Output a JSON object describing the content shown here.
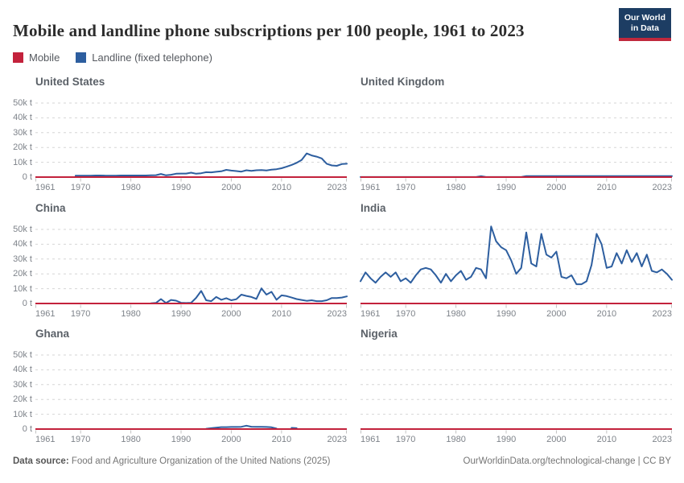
{
  "header": {
    "title": "Mobile and landline phone subscriptions per 100 people, 1961 to 2023",
    "logo": {
      "line1": "Our World",
      "line2": "in Data",
      "bg_color": "#1d3d63",
      "bar_color": "#c0283c"
    }
  },
  "legend": {
    "items": [
      {
        "label": "Mobile",
        "color": "#c3223c"
      },
      {
        "label": "Landline (fixed telephone)",
        "color": "#2d5e9f"
      }
    ]
  },
  "footer": {
    "source_label": "Data source:",
    "source_text": " Food and Agriculture Organization of the United Nations (2025)",
    "credit_text": "OurWorldinData.org/technological-change | CC BY"
  },
  "chart_data": {
    "type": "line",
    "layout": "small multiples, 3 rows x 2 columns, shared axes",
    "x_axis": {
      "min": 1961,
      "max": 2023,
      "ticks": [
        1961,
        1970,
        1980,
        1990,
        2000,
        2010,
        2023
      ]
    },
    "y_axis": {
      "min": 0,
      "max": 50000,
      "unit": "t",
      "grid": "dashed",
      "ticks": [
        {
          "value": 0,
          "label": "0 t"
        },
        {
          "value": 10000,
          "label": "10k t"
        },
        {
          "value": 20000,
          "label": "20k t"
        },
        {
          "value": 30000,
          "label": "30k t"
        },
        {
          "value": 40000,
          "label": "40k t"
        },
        {
          "value": 50000,
          "label": "50k t"
        }
      ],
      "labels_note": "tick labels shown on left column panels only"
    },
    "series_colors": {
      "mobile": "#c3223c",
      "landline": "#2d5e9f"
    },
    "panels": [
      {
        "name": "United States",
        "mobile": {
          "constant_kt": 0
        },
        "landline": {
          "start_year": 1969,
          "values_kt": [
            1.0,
            1.0,
            1.0,
            1.0,
            1.1,
            1.1,
            1.0,
            1.0,
            1.0,
            1.1,
            1.1,
            1.1,
            1.1,
            1.1,
            1.1,
            1.2,
            1.3,
            2.1,
            1.2,
            1.6,
            2.3,
            2.4,
            2.4,
            3.0,
            2.3,
            2.6,
            3.3,
            3.2,
            3.6,
            3.9,
            4.9,
            4.4,
            4.1,
            3.7,
            4.6,
            4.2,
            4.6,
            4.8,
            4.5,
            5.0,
            5.3,
            6.0,
            7.0,
            8.2,
            9.6,
            11.6,
            16.0,
            14.6,
            13.8,
            12.6,
            9.0,
            7.9,
            7.6,
            8.8,
            9.0
          ]
        }
      },
      {
        "name": "United Kingdom",
        "mobile": {
          "constant_kt": 0
        },
        "landline": {
          "start_year": 1961,
          "values_kt": [
            0.05,
            0.05,
            0.05,
            0.05,
            0.05,
            0.05,
            0.05,
            0.05,
            0.05,
            0.05,
            0.05,
            0.05,
            0.05,
            0.05,
            0.05,
            0.05,
            0.05,
            0.05,
            0.05,
            0.05,
            0.05,
            0.05,
            0.05,
            0.05,
            0.6,
            0.05,
            0.05,
            0.05,
            0.05,
            0.05,
            0.05,
            0.05,
            0.05,
            0.7,
            0.7,
            0.7,
            0.7,
            0.7,
            0.7,
            0.7,
            0.7,
            0.7,
            0.7,
            0.7,
            0.7,
            0.7,
            0.7,
            0.7,
            0.7,
            0.7,
            0.7,
            0.7,
            0.7,
            0.7,
            0.7,
            0.7,
            0.7,
            0.7,
            0.7,
            0.7,
            0.7,
            0.7,
            0.7
          ]
        }
      },
      {
        "name": "China",
        "mobile": {
          "constant_kt": 0
        },
        "landline": {
          "start_year": 1984,
          "values_kt": [
            0.1,
            0.4,
            3.0,
            0.3,
            2.4,
            1.9,
            0.5,
            0.3,
            0.5,
            3.8,
            8.5,
            2.2,
            1.6,
            4.4,
            2.5,
            3.6,
            2.2,
            2.9,
            6.0,
            5.1,
            4.4,
            3.1,
            10.2,
            6.0,
            7.9,
            2.5,
            5.5,
            5.0,
            4.0,
            3.0,
            2.4,
            1.8,
            2.2,
            1.6,
            1.6,
            2.2,
            3.7,
            3.7,
            4.0,
            4.8
          ]
        }
      },
      {
        "name": "India",
        "mobile": {
          "constant_kt": 0
        },
        "landline": {
          "start_year": 1961,
          "values_kt": [
            15,
            21,
            17,
            14,
            18,
            21,
            18,
            21,
            15,
            17,
            14,
            19,
            23,
            24,
            23,
            19,
            14,
            20,
            15,
            19,
            22,
            16,
            18,
            24,
            23,
            17,
            52,
            42,
            38,
            36,
            29,
            20,
            24,
            48,
            27,
            25,
            47,
            33,
            31,
            35,
            18,
            17,
            19,
            13,
            13,
            15,
            26,
            47,
            40,
            24,
            25,
            34,
            27,
            36,
            28,
            34,
            25,
            33,
            22,
            21,
            23,
            20,
            16
          ]
        }
      },
      {
        "name": "Ghana",
        "mobile": {
          "constant_kt": 0
        },
        "landline": {
          "start_year": 1995,
          "values_kt": [
            0.2,
            0.6,
            1.0,
            1.3,
            1.3,
            1.4,
            1.4,
            1.5,
            2.3,
            1.6,
            1.5,
            1.5,
            1.4,
            1.2,
            0.3,
            null,
            null,
            0.8,
            0.6
          ]
        }
      },
      {
        "name": "Nigeria",
        "mobile": {
          "constant_kt": 0
        },
        "landline": {
          "start_year": null,
          "values_kt": []
        }
      }
    ]
  }
}
